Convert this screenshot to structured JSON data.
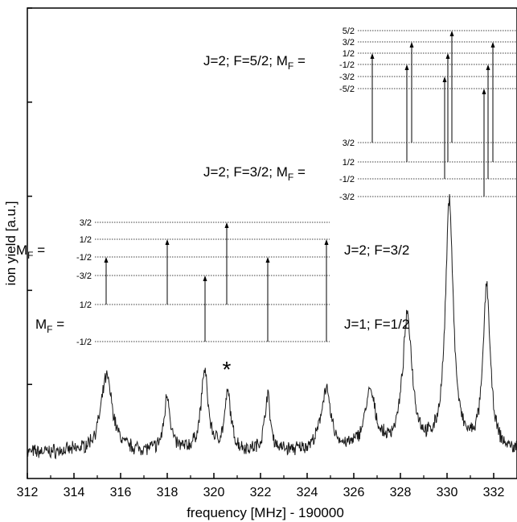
{
  "chart_data": {
    "type": "line",
    "title": "",
    "xlabel": "frequency [MHz] - 190000",
    "ylabel": "ion yield [a.u.]",
    "xlim": [
      312,
      333
    ],
    "ylim": [
      0,
      1
    ],
    "xticks": [
      312,
      314,
      316,
      318,
      320,
      322,
      324,
      326,
      328,
      330,
      332
    ],
    "yticks_unlabeled": [
      0.2,
      0.4,
      0.6,
      0.8,
      1.0
    ],
    "grid": false,
    "legend": "none",
    "line_color": "#1a1a1a",
    "baseline": 0.055,
    "noise_amplitude": 0.012,
    "peaks": [
      {
        "x": 315.4,
        "height": 0.16,
        "width": 0.3
      },
      {
        "x": 318.0,
        "height": 0.12,
        "width": 0.15
      },
      {
        "x": 319.6,
        "height": 0.17,
        "width": 0.18
      },
      {
        "x": 320.6,
        "height": 0.12,
        "width": 0.16
      },
      {
        "x": 322.3,
        "height": 0.12,
        "width": 0.14
      },
      {
        "x": 324.8,
        "height": 0.13,
        "width": 0.25
      },
      {
        "x": 326.7,
        "height": 0.12,
        "width": 0.28
      },
      {
        "x": 328.3,
        "height": 0.28,
        "width": 0.25
      },
      {
        "x": 330.1,
        "height": 0.53,
        "width": 0.2
      },
      {
        "x": 331.7,
        "height": 0.35,
        "width": 0.18
      }
    ],
    "annotations": {
      "asterisk": {
        "label": "*"
      },
      "lower_diagram": {
        "upper_state_label": "J=2; F=3/2",
        "lower_state_label": "J=1; F=1/2",
        "upper_mf_prefix": "M",
        "upper_mf_sub": "F",
        "upper_mf_suffix": " =",
        "lower_mf_prefix": "M",
        "lower_mf_sub": "F",
        "lower_mf_suffix": " =",
        "upper_levels": [
          "3/2",
          "1/2",
          "-1/2",
          "-3/2"
        ],
        "lower_levels": [
          "1/2",
          "-1/2"
        ]
      },
      "upper_diagram": {
        "upper_state_label": "J=2; F=5/2; M",
        "upper_state_sub": "F",
        "upper_state_suffix": " =",
        "lower_state_label": "J=2; F=3/2; M",
        "lower_state_sub": "F",
        "lower_state_suffix": " =",
        "upper_levels": [
          "5/2",
          "3/2",
          "1/2",
          "-1/2",
          "-3/2",
          "-5/2"
        ],
        "lower_levels": [
          "3/2",
          "1/2",
          "-1/2",
          "-3/2"
        ]
      }
    }
  }
}
